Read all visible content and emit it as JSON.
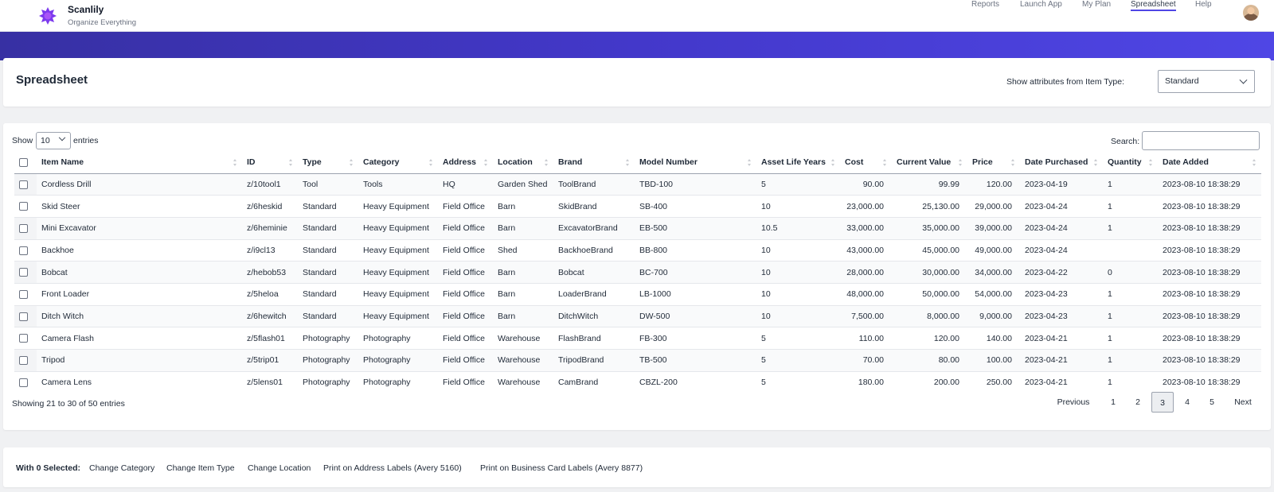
{
  "brand": {
    "name": "Scanlily",
    "tagline": "Organize Everything"
  },
  "nav": [
    {
      "label": "Reports",
      "active": false
    },
    {
      "label": "Launch App",
      "active": false
    },
    {
      "label": "My Plan",
      "active": false
    },
    {
      "label": "Spreadsheet",
      "active": true
    },
    {
      "label": "Help",
      "active": false
    }
  ],
  "header": {
    "title": "Spreadsheet",
    "item_type_label": "Show attributes from Item Type:",
    "item_type_value": "Standard"
  },
  "table_controls": {
    "show_label": "Show",
    "entries_value": "10",
    "entries_label": "entries",
    "search_label": "Search:",
    "search_value": ""
  },
  "columns": [
    "Item Name",
    "ID",
    "Type",
    "Category",
    "Address",
    "Location",
    "Brand",
    "Model Number",
    "Asset Life Years",
    "Cost",
    "Current Value",
    "Price",
    "Date Purchased",
    "Quantity",
    "Date Added"
  ],
  "rows": [
    [
      "Cordless Drill",
      "z/10tool1",
      "Tool",
      "Tools",
      "HQ",
      "Garden Shed",
      "ToolBrand",
      "TBD-100",
      "5",
      "90.00",
      "99.99",
      "120.00",
      "2023-04-19",
      "1",
      "2023-08-10 18:38:29"
    ],
    [
      "Skid Steer",
      "z/6heskid",
      "Standard",
      "Heavy Equipment",
      "Field Office",
      "Barn",
      "SkidBrand",
      "SB-400",
      "10",
      "23,000.00",
      "25,130.00",
      "29,000.00",
      "2023-04-24",
      "1",
      "2023-08-10 18:38:29"
    ],
    [
      "Mini Excavator",
      "z/6heminie",
      "Standard",
      "Heavy Equipment",
      "Field Office",
      "Barn",
      "ExcavatorBrand",
      "EB-500",
      "10.5",
      "33,000.00",
      "35,000.00",
      "39,000.00",
      "2023-04-24",
      "1",
      "2023-08-10 18:38:29"
    ],
    [
      "Backhoe",
      "z/i9cl13",
      "Standard",
      "Heavy Equipment",
      "Field Office",
      "Shed",
      "BackhoeBrand",
      "BB-800",
      "10",
      "43,000.00",
      "45,000.00",
      "49,000.00",
      "2023-04-24",
      "",
      "2023-08-10 18:38:29"
    ],
    [
      "Bobcat",
      "z/hebob53",
      "Standard",
      "Heavy Equipment",
      "Field Office",
      "Barn",
      "Bobcat",
      "BC-700",
      "10",
      "28,000.00",
      "30,000.00",
      "34,000.00",
      "2023-04-22",
      "0",
      "2023-08-10 18:38:29"
    ],
    [
      "Front Loader",
      "z/5heloa",
      "Standard",
      "Heavy Equipment",
      "Field Office",
      "Barn",
      "LoaderBrand",
      "LB-1000",
      "10",
      "48,000.00",
      "50,000.00",
      "54,000.00",
      "2023-04-23",
      "1",
      "2023-08-10 18:38:29"
    ],
    [
      "Ditch Witch",
      "z/6hewitch",
      "Standard",
      "Heavy Equipment",
      "Field Office",
      "Barn",
      "DitchWitch",
      "DW-500",
      "10",
      "7,500.00",
      "8,000.00",
      "9,000.00",
      "2023-04-23",
      "1",
      "2023-08-10 18:38:29"
    ],
    [
      "Camera Flash",
      "z/5flash01",
      "Photography",
      "Photography",
      "Field Office",
      "Warehouse",
      "FlashBrand",
      "FB-300",
      "5",
      "110.00",
      "120.00",
      "140.00",
      "2023-04-21",
      "1",
      "2023-08-10 18:38:29"
    ],
    [
      "Tripod",
      "z/5trip01",
      "Photography",
      "Photography",
      "Field Office",
      "Warehouse",
      "TripodBrand",
      "TB-500",
      "5",
      "70.00",
      "80.00",
      "100.00",
      "2023-04-21",
      "1",
      "2023-08-10 18:38:29"
    ],
    [
      "Camera Lens",
      "z/5lens01",
      "Photography",
      "Photography",
      "Field Office",
      "Warehouse",
      "CamBrand",
      "CBZL-200",
      "5",
      "180.00",
      "200.00",
      "250.00",
      "2023-04-21",
      "1",
      "2023-08-10 18:38:29"
    ]
  ],
  "info_text": "Showing 21 to 30 of 50 entries",
  "pagination": {
    "previous": "Previous",
    "pages": [
      "1",
      "2",
      "3",
      "4",
      "5"
    ],
    "current": "3",
    "next": "Next"
  },
  "actions": {
    "with_selected": "With 0 Selected:",
    "items": [
      "Change Category",
      "Change Item Type",
      "Change Location",
      "Print on Address Labels (Avery 5160)",
      "Print on Business Card Labels (Avery 8877)"
    ]
  },
  "colors": {
    "accent": "#4f46e5",
    "band_start": "#3730a3",
    "band_end": "#4f46e5",
    "logo": "#7c3aed"
  }
}
